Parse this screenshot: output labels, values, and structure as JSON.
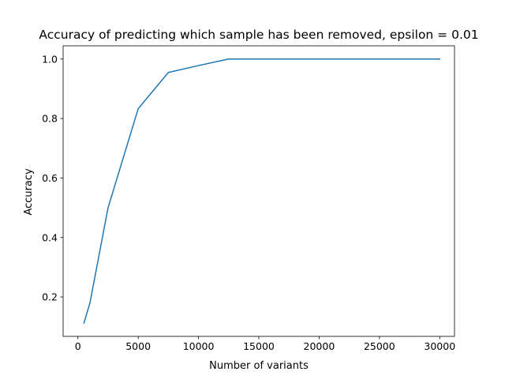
{
  "chart_data": {
    "type": "line",
    "title": "Accuracy of predicting which sample has been removed, epsilon = 0.01",
    "xlabel": "Number of variants",
    "ylabel": "Accuracy",
    "xlim": [
      -1225,
      31225
    ],
    "ylim": [
      0.0675,
      1.0445
    ],
    "xticks": [
      0,
      5000,
      10000,
      15000,
      20000,
      25000,
      30000
    ],
    "xtick_labels": [
      "0",
      "5000",
      "10000",
      "15000",
      "20000",
      "25000",
      "30000"
    ],
    "yticks": [
      0.2,
      0.4,
      0.6,
      0.8,
      1.0
    ],
    "ytick_labels": [
      "0.2",
      "0.4",
      "0.6",
      "0.8",
      "1.0"
    ],
    "grid": false,
    "series": [
      {
        "color": "#1f77b4",
        "x": [
          500,
          1000,
          2500,
          5000,
          7500,
          10000,
          12500,
          15000,
          20000,
          25000,
          30000
        ],
        "y": [
          0.112,
          0.18,
          0.5,
          0.833,
          0.955,
          0.978,
          1.0,
          1.0,
          1.0,
          1.0,
          1.0
        ]
      }
    ]
  }
}
